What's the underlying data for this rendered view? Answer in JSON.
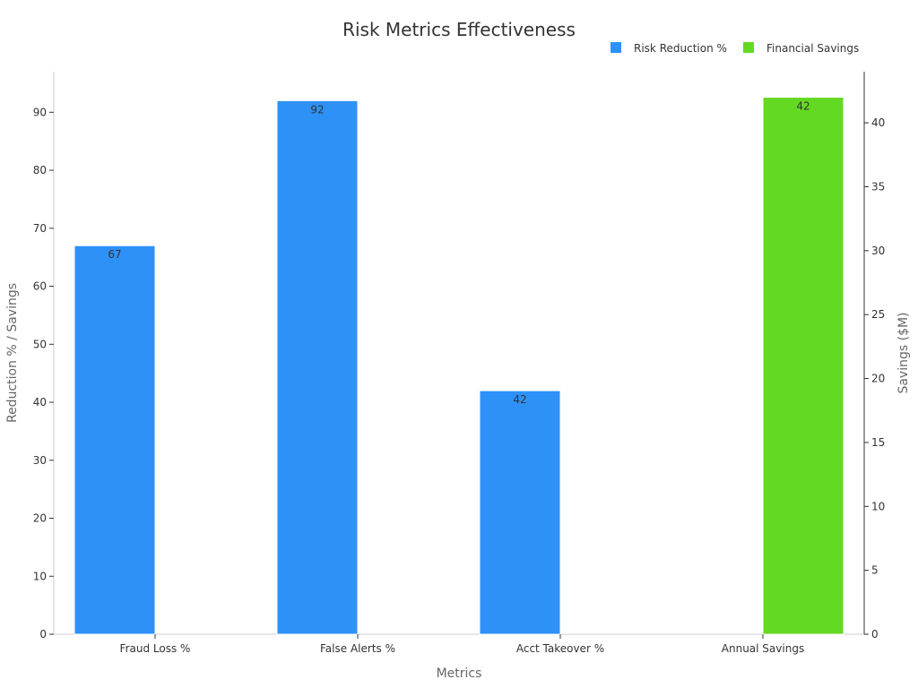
{
  "chart_data": {
    "type": "bar",
    "title": "Risk Metrics Effectiveness",
    "categories": [
      "Fraud Loss %",
      "False Alerts %",
      "Acct Takeover %",
      "Annual Savings"
    ],
    "series": [
      {
        "name": "Risk Reduction %",
        "axis": "left",
        "color": "#2e91f8",
        "values": [
          67,
          92,
          42,
          null
        ]
      },
      {
        "name": "Financial Savings",
        "axis": "right",
        "color": "#64d922",
        "values": [
          null,
          null,
          null,
          42
        ]
      }
    ],
    "xlabel": "Metrics",
    "ylabel": "Reduction % / Savings",
    "ylabel_right": "Savings ($M)",
    "ylim": [
      0,
      97
    ],
    "ylim_right": [
      0,
      44
    ],
    "yticks": [
      0,
      10,
      20,
      30,
      40,
      50,
      60,
      70,
      80,
      90
    ],
    "yticks_right": [
      0,
      5,
      10,
      15,
      20,
      25,
      30,
      35,
      40
    ],
    "legend_position": "top-right",
    "grid": false
  }
}
